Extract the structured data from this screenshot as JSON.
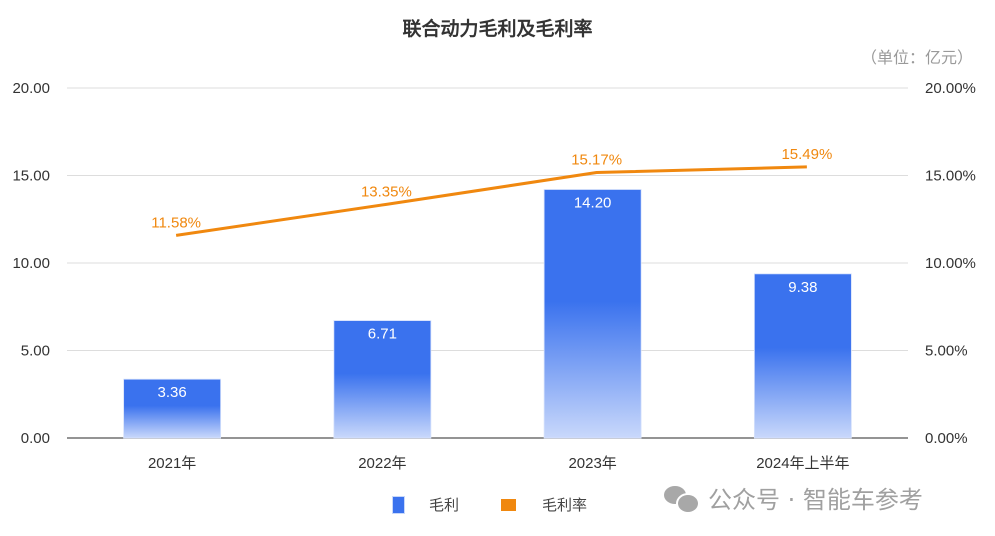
{
  "chart_data": {
    "type": "bar",
    "title": "联合动力毛利及毛利率",
    "unit_label": "（单位：亿元）",
    "categories": [
      "2021年",
      "2022年",
      "2023年",
      "2024年上半年"
    ],
    "series": [
      {
        "name": "毛利",
        "type": "bar",
        "axis": "left",
        "values": [
          3.36,
          6.71,
          14.2,
          9.38
        ],
        "labels": [
          "3.36",
          "6.71",
          "14.20",
          "9.38"
        ],
        "color": "#3a72ee"
      },
      {
        "name": "毛利率",
        "type": "line",
        "axis": "right",
        "values": [
          11.58,
          13.35,
          15.17,
          15.49
        ],
        "labels": [
          "11.58%",
          "13.35%",
          "15.17%",
          "15.49%"
        ],
        "color": "#f0880f"
      }
    ],
    "y_left": {
      "ylim": [
        0,
        20
      ],
      "ticks": [
        "0.00",
        "5.00",
        "10.00",
        "15.00",
        "20.00"
      ]
    },
    "y_right": {
      "ylim": [
        0,
        20
      ],
      "ticks": [
        "0.00%",
        "5.00%",
        "10.00%",
        "15.00%",
        "20.00%"
      ]
    },
    "xlabel": "",
    "ylabel": "",
    "grid": true,
    "legend_position": "bottom"
  },
  "legend": {
    "items": [
      {
        "label": "毛利",
        "color": "#3a72ee"
      },
      {
        "label": "毛利率",
        "color": "#f0880f"
      }
    ]
  },
  "watermark": {
    "icon": "wechat-icon",
    "text": "公众号 · 智能车参考"
  }
}
